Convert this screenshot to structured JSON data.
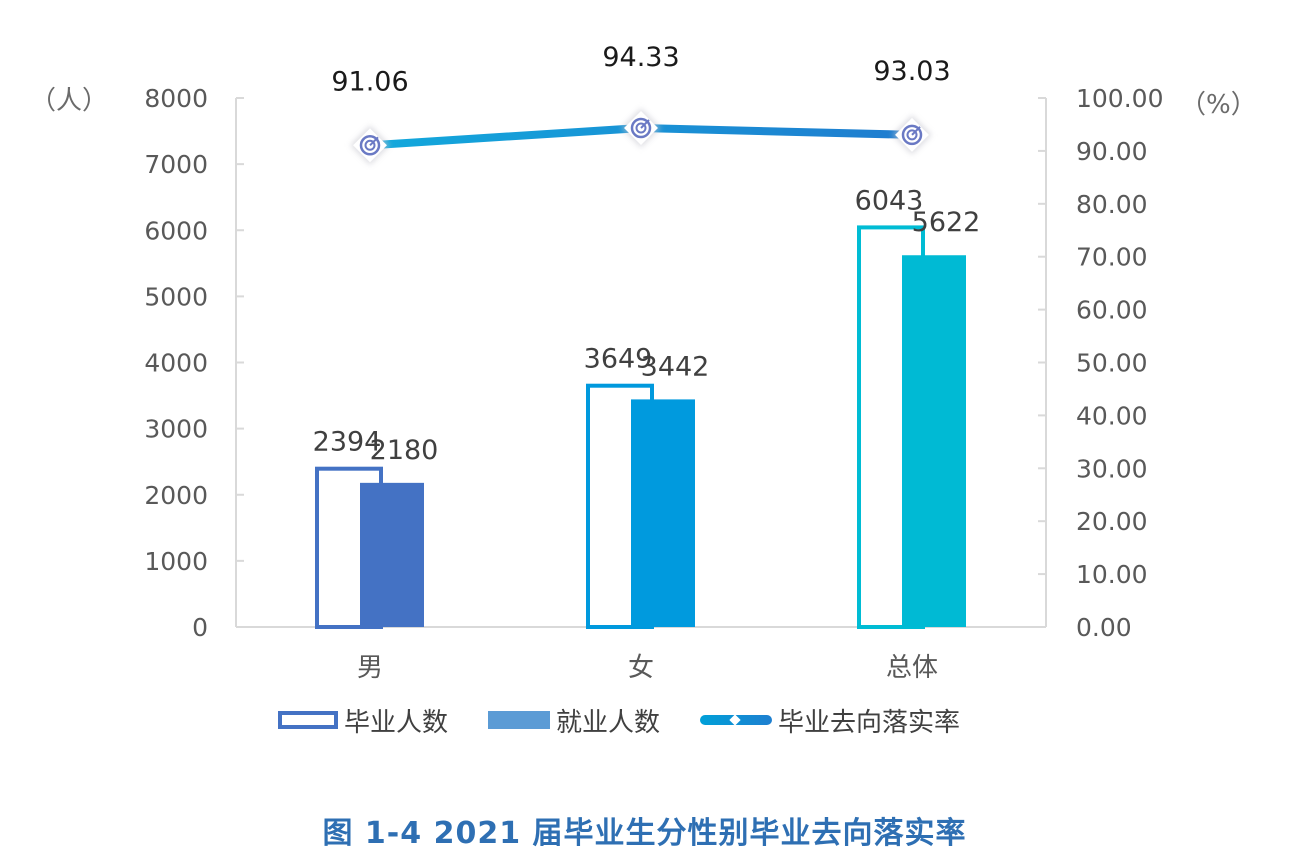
{
  "chart_data": {
    "type": "bar+line",
    "title": "图 1-4 2021 届毕业生分性别毕业去向落实率",
    "categories": [
      "男",
      "女",
      "总体"
    ],
    "series": [
      {
        "name": "毕业人数",
        "type": "bar",
        "style": "outline",
        "axis": "left",
        "values": [
          2394,
          3649,
          6043
        ],
        "colors": [
          "#4472c4",
          "#0099dd",
          "#00bcd4"
        ]
      },
      {
        "name": "就业人数",
        "type": "bar",
        "style": "filled",
        "axis": "left",
        "values": [
          2180,
          3442,
          5622
        ],
        "colors": [
          "#4472c4",
          "#009ade",
          "#00bad4"
        ]
      },
      {
        "name": "毕业去向落实率",
        "type": "line",
        "axis": "right",
        "values": [
          91.06,
          94.33,
          93.03
        ],
        "color": "#1592d4"
      }
    ],
    "left_axis": {
      "unit": "（人）",
      "ylim": [
        0,
        8000
      ],
      "ticks": [
        "0",
        "1000",
        "2000",
        "3000",
        "4000",
        "5000",
        "6000",
        "7000",
        "8000"
      ]
    },
    "right_axis": {
      "unit": "（%）",
      "ylim": [
        0,
        100
      ],
      "ticks": [
        "0.00",
        "10.00",
        "20.00",
        "30.00",
        "40.00",
        "50.00",
        "60.00",
        "70.00",
        "80.00",
        "90.00",
        "100.00"
      ]
    },
    "legend": {
      "position": "bottom",
      "entries": [
        "毕业人数",
        "就业人数",
        "毕业去向落实率"
      ]
    },
    "grid": false
  },
  "labels": {
    "left_unit": "（人）",
    "right_unit": "（%）",
    "caption": "图 1-4 2021 届毕业生分性别毕业去向落实率",
    "legend": [
      "毕业人数",
      "就业人数",
      "毕业去向落实率"
    ]
  }
}
